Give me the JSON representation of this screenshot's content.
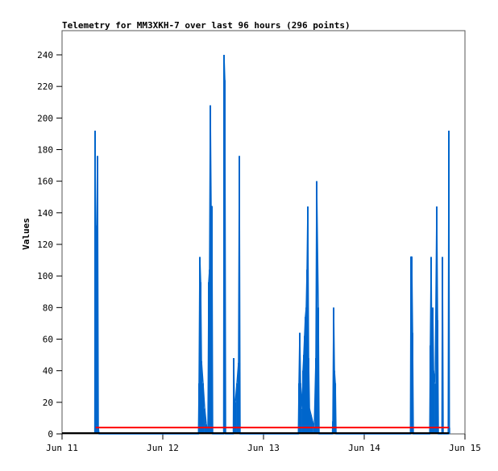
{
  "chart_data": {
    "type": "line",
    "title": "Telemetry for MM3XKH-7 over last 96 hours (296 points)",
    "ylabel": "Values",
    "xlabel": "",
    "xlim_hours": [
      0,
      96
    ],
    "ylim": [
      0,
      255
    ],
    "x_ticks": [
      "Jun 11",
      "Jun 12",
      "Jun 13",
      "Jun 14",
      "Jun 15"
    ],
    "y_ticks": [
      0,
      20,
      40,
      60,
      80,
      100,
      120,
      140,
      160,
      180,
      200,
      220,
      240
    ],
    "grid": false,
    "series": [
      {
        "color": "#0066cc",
        "points_hours_from_jun11": [
          [
            7.8,
            0
          ],
          [
            7.87,
            192
          ],
          [
            8.06,
            44
          ],
          [
            8.26,
            132
          ],
          [
            8.45,
            176
          ],
          [
            8.64,
            4
          ],
          [
            8.83,
            0
          ],
          [
            32.5,
            0
          ],
          [
            32.64,
            32
          ],
          [
            32.83,
            112
          ],
          [
            33.03,
            96
          ],
          [
            33.22,
            46
          ],
          [
            33.6,
            32
          ],
          [
            33.99,
            16
          ],
          [
            34.37,
            6
          ],
          [
            34.75,
            0
          ],
          [
            34.95,
            96
          ],
          [
            35.14,
            104
          ],
          [
            35.33,
            208
          ],
          [
            35.52,
            144
          ],
          [
            35.71,
            144
          ],
          [
            35.9,
            0
          ],
          [
            38.5,
            0
          ],
          [
            38.59,
            240
          ],
          [
            38.79,
            224
          ],
          [
            38.98,
            0
          ],
          [
            40.8,
            0
          ],
          [
            40.9,
            48
          ],
          [
            41.09,
            14
          ],
          [
            41.28,
            20
          ],
          [
            41.67,
            32
          ],
          [
            42.05,
            45
          ],
          [
            42.24,
            176
          ],
          [
            42.43,
            0
          ],
          [
            56.3,
            0
          ],
          [
            56.45,
            32
          ],
          [
            56.64,
            64
          ],
          [
            56.83,
            32
          ],
          [
            57.22,
            16
          ],
          [
            57.41,
            40
          ],
          [
            57.6,
            50
          ],
          [
            57.79,
            62
          ],
          [
            57.98,
            74
          ],
          [
            58.18,
            80
          ],
          [
            58.37,
            104
          ],
          [
            58.56,
            144
          ],
          [
            58.75,
            48
          ],
          [
            58.95,
            16
          ],
          [
            59.33,
            12
          ],
          [
            59.7,
            8
          ],
          [
            60.1,
            4
          ],
          [
            60.48,
            48
          ],
          [
            60.67,
            160
          ],
          [
            61.06,
            80
          ],
          [
            61.25,
            0
          ],
          [
            64.4,
            0
          ],
          [
            64.52,
            8
          ],
          [
            64.71,
            80
          ],
          [
            64.9,
            40
          ],
          [
            65.1,
            32
          ],
          [
            65.29,
            0
          ],
          [
            83.0,
            0
          ],
          [
            83.14,
            112
          ],
          [
            83.33,
            112
          ],
          [
            83.52,
            64
          ],
          [
            83.7,
            0
          ],
          [
            87.6,
            0
          ],
          [
            87.75,
            56
          ],
          [
            87.94,
            112
          ],
          [
            88.13,
            40
          ],
          [
            88.33,
            80
          ],
          [
            88.52,
            40
          ],
          [
            88.9,
            32
          ],
          [
            89.28,
            144
          ],
          [
            89.48,
            72
          ],
          [
            89.67,
            0
          ],
          [
            90.5,
            0
          ],
          [
            90.63,
            112
          ],
          [
            90.82,
            0
          ],
          [
            92.0,
            0
          ],
          [
            92.16,
            192
          ],
          [
            92.3,
            4
          ]
        ]
      },
      {
        "color": "#ff0000",
        "constant": 4,
        "from_hour": 8,
        "to_hour": 92.2
      },
      {
        "color": "#000000",
        "constant": 0,
        "from_hour": 0,
        "to_hour": 92.2
      }
    ]
  }
}
